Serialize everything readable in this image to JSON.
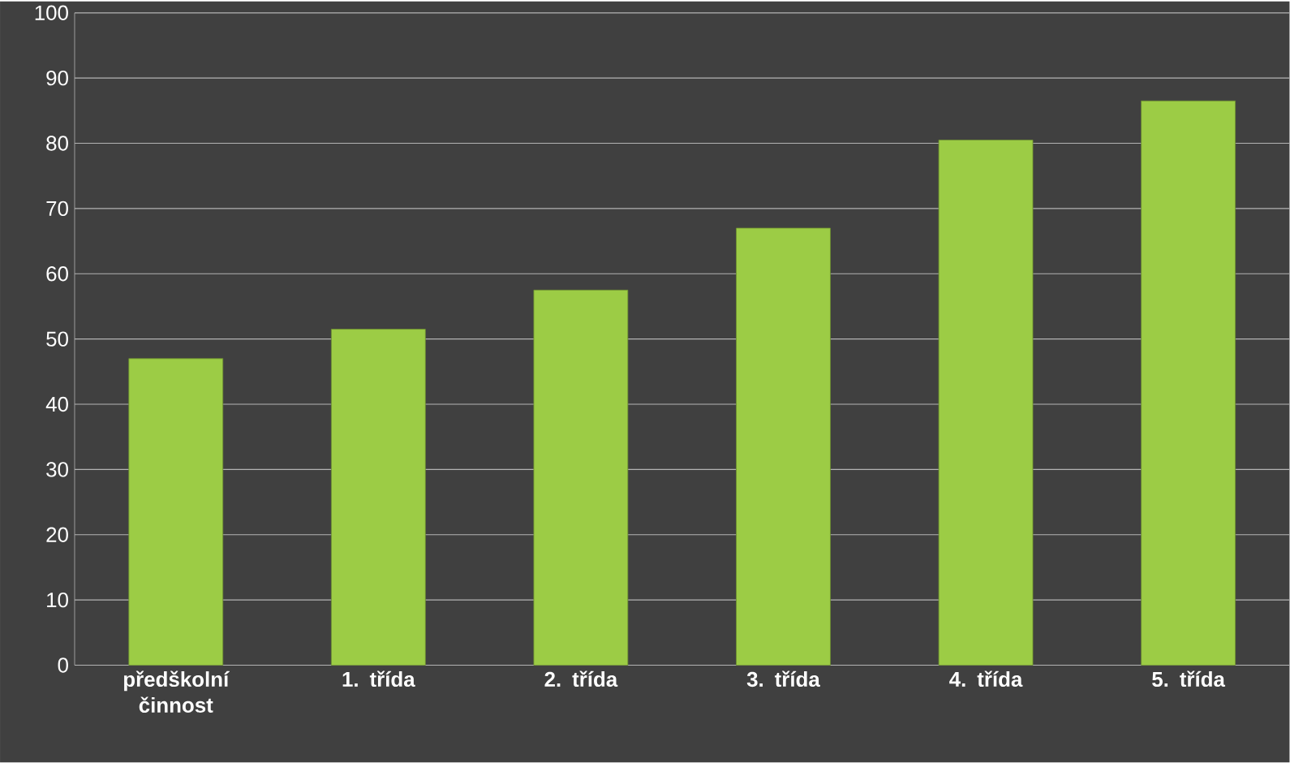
{
  "chart_data": {
    "type": "bar",
    "categories": [
      "předškolní činnost",
      "1. třída",
      "2. třída",
      "3. třída",
      "4. třída",
      "5. třída"
    ],
    "values": [
      47,
      51.5,
      57.5,
      67,
      80.5,
      86.5
    ],
    "color": "#9ccc45",
    "ylim": [
      0,
      100
    ],
    "yticks": [
      0,
      10,
      20,
      30,
      40,
      50,
      60,
      70,
      80,
      90,
      100
    ],
    "grid": "y"
  }
}
